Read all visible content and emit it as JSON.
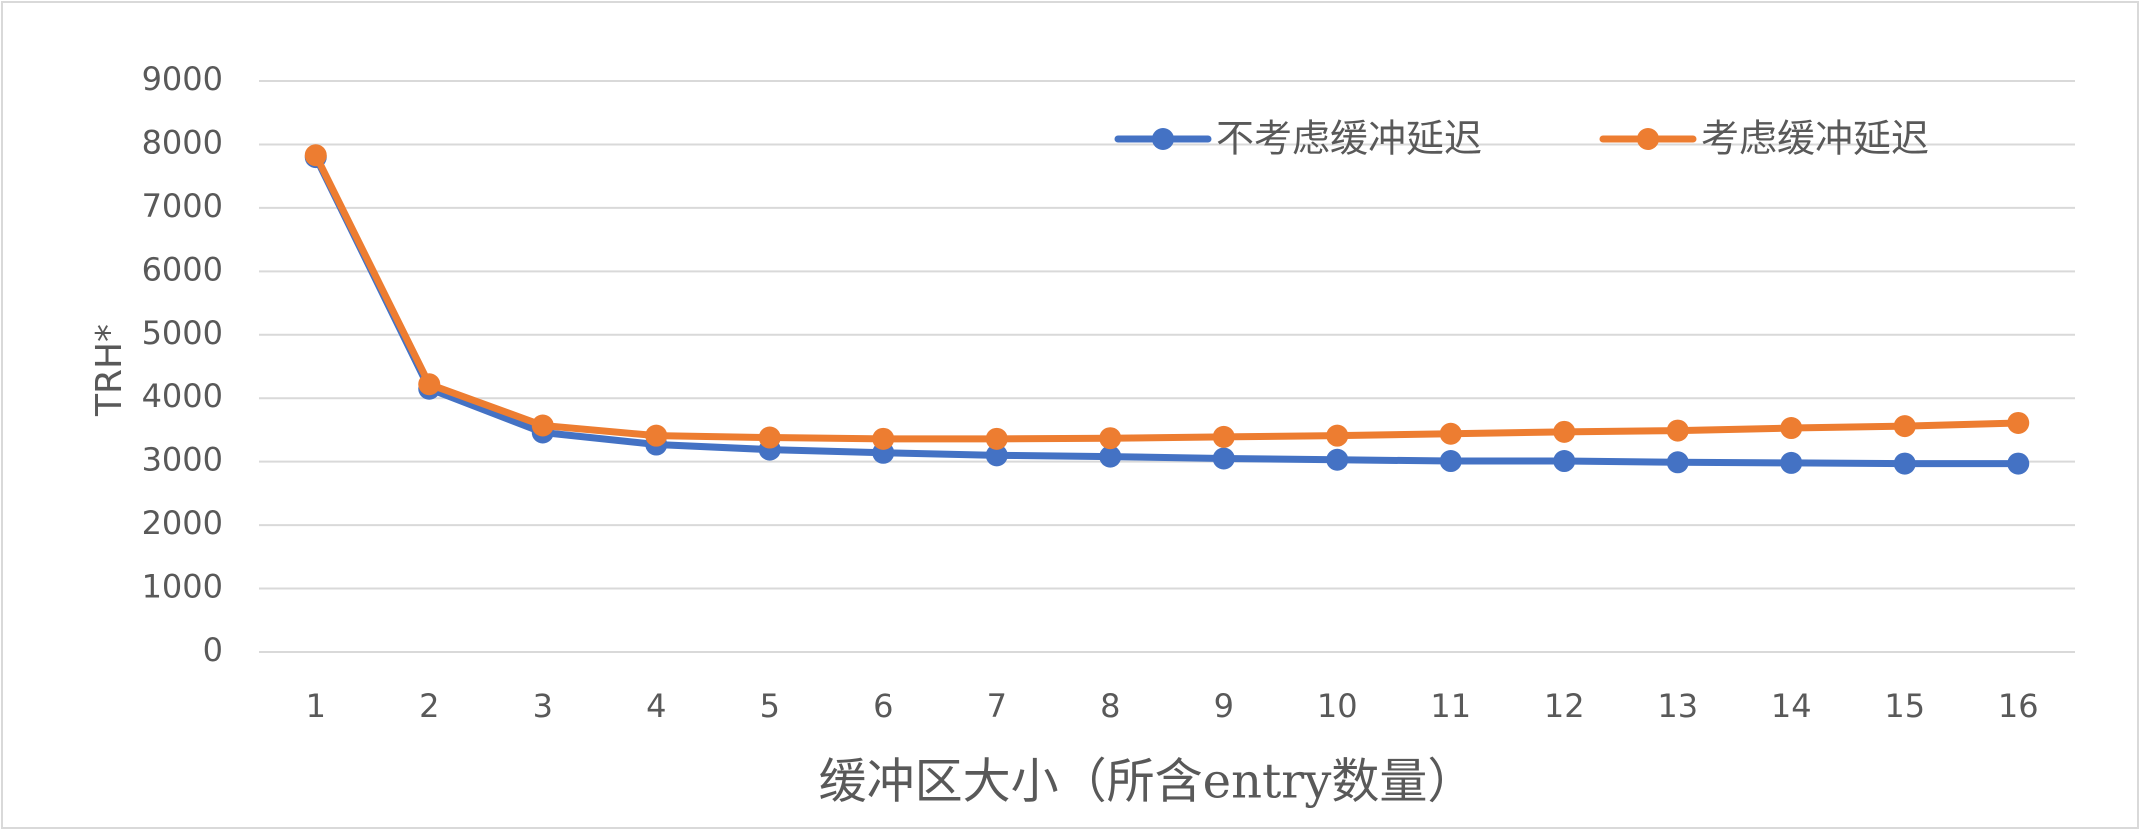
{
  "chart_data": {
    "type": "line",
    "title": "",
    "xlabel": "缓冲区大小（所含entry数量）",
    "ylabel": "TRH*",
    "categories": [
      "1",
      "2",
      "3",
      "4",
      "5",
      "6",
      "7",
      "8",
      "9",
      "10",
      "11",
      "12",
      "13",
      "14",
      "15",
      "16"
    ],
    "ylim": [
      0,
      9000
    ],
    "yticks": [
      0,
      1000,
      2000,
      3000,
      4000,
      5000,
      6000,
      7000,
      8000,
      9000
    ],
    "grid": true,
    "legend_position": "top-right",
    "series": [
      {
        "name": "不考虑缓冲延迟",
        "color": "#4472c4",
        "values": [
          7800,
          4150,
          3460,
          3270,
          3190,
          3140,
          3100,
          3080,
          3050,
          3030,
          3010,
          3010,
          2990,
          2980,
          2970,
          2970
        ]
      },
      {
        "name": "考虑缓冲延迟",
        "color": "#ed7d31",
        "values": [
          7830,
          4220,
          3570,
          3410,
          3380,
          3360,
          3360,
          3370,
          3390,
          3410,
          3440,
          3470,
          3490,
          3530,
          3560,
          3610
        ]
      }
    ]
  }
}
